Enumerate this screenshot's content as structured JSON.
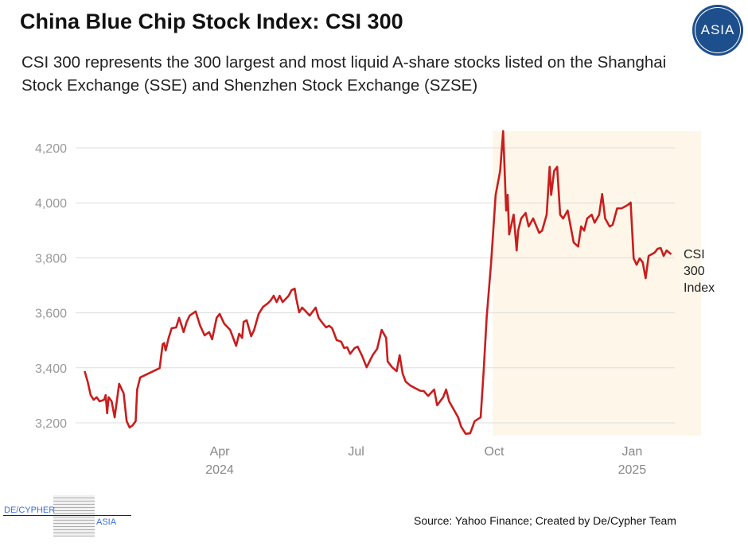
{
  "title": "China Blue Chip Stock Index: CSI 300",
  "subtitle": "CSI 300 represents the 300 largest and most liquid A-share stocks listed on the Shanghai Stock Exchange (SSE) and Shenzhen Stock Exchange (SZSE)",
  "logo_text": "ASIA",
  "source": "Source: Yahoo Finance; Created by De/Cypher Team",
  "footer_logo": {
    "left": "DE/CYPHER",
    "right": "ASIA"
  },
  "colors": {
    "line": "#c81e1e",
    "highlight": "#fdf6e9",
    "grid": "#dddddd"
  },
  "chart_data": {
    "type": "line",
    "title": "China Blue Chip Stock Index: CSI 300",
    "xlabel": "",
    "ylabel": "",
    "x_unit": "days since 2024-01-01",
    "ylim": [
      3150,
      4270
    ],
    "xlim": [
      0,
      395
    ],
    "yticks": [
      {
        "v": 3200,
        "label": "3,200"
      },
      {
        "v": 3400,
        "label": "3,400"
      },
      {
        "v": 3600,
        "label": "3,600"
      },
      {
        "v": 3800,
        "label": "3,800"
      },
      {
        "v": 4000,
        "label": "4,000"
      },
      {
        "v": 4200,
        "label": "4,200"
      }
    ],
    "xticks": [
      {
        "d": 91,
        "label": "Apr",
        "sub": "2024"
      },
      {
        "d": 182,
        "label": "Jul",
        "sub": ""
      },
      {
        "d": 274,
        "label": "Oct",
        "sub": ""
      },
      {
        "d": 366,
        "label": "Jan",
        "sub": "2025"
      }
    ],
    "highlight_range": [
      273,
      395
    ],
    "series": [
      {
        "name": "CSI 300 Index",
        "label_lines": [
          "CSI",
          "300",
          "Index"
        ],
        "points": [
          [
            1,
            3388
          ],
          [
            3,
            3350
          ],
          [
            5,
            3301
          ],
          [
            7,
            3284
          ],
          [
            9,
            3293
          ],
          [
            11,
            3278
          ],
          [
            14,
            3284
          ],
          [
            15,
            3301
          ],
          [
            16,
            3235
          ],
          [
            17,
            3293
          ],
          [
            19,
            3278
          ],
          [
            21,
            3220
          ],
          [
            24,
            3342
          ],
          [
            27,
            3307
          ],
          [
            29,
            3206
          ],
          [
            31,
            3183
          ],
          [
            33,
            3191
          ],
          [
            35,
            3206
          ],
          [
            36,
            3321
          ],
          [
            38,
            3365
          ],
          [
            51,
            3399
          ],
          [
            53,
            3486
          ],
          [
            54,
            3490
          ],
          [
            55,
            3463
          ],
          [
            57,
            3509
          ],
          [
            59,
            3544
          ],
          [
            62,
            3547
          ],
          [
            64,
            3582
          ],
          [
            67,
            3530
          ],
          [
            69,
            3567
          ],
          [
            71,
            3590
          ],
          [
            75,
            3605
          ],
          [
            78,
            3553
          ],
          [
            81,
            3518
          ],
          [
            84,
            3530
          ],
          [
            86,
            3504
          ],
          [
            89,
            3582
          ],
          [
            91,
            3596
          ],
          [
            94,
            3561
          ],
          [
            98,
            3538
          ],
          [
            102,
            3480
          ],
          [
            104,
            3524
          ],
          [
            106,
            3509
          ],
          [
            107,
            3567
          ],
          [
            109,
            3573
          ],
          [
            112,
            3515
          ],
          [
            114,
            3538
          ],
          [
            117,
            3596
          ],
          [
            120,
            3622
          ],
          [
            123,
            3634
          ],
          [
            125,
            3645
          ],
          [
            127,
            3662
          ],
          [
            129,
            3639
          ],
          [
            131,
            3662
          ],
          [
            133,
            3639
          ],
          [
            137,
            3662
          ],
          [
            139,
            3683
          ],
          [
            141,
            3688
          ],
          [
            142,
            3654
          ],
          [
            144,
            3602
          ],
          [
            146,
            3619
          ],
          [
            149,
            3602
          ],
          [
            151,
            3590
          ],
          [
            155,
            3619
          ],
          [
            157,
            3582
          ],
          [
            159,
            3567
          ],
          [
            162,
            3547
          ],
          [
            164,
            3553
          ],
          [
            166,
            3544
          ],
          [
            169,
            3501
          ],
          [
            172,
            3495
          ],
          [
            174,
            3472
          ],
          [
            176,
            3475
          ],
          [
            178,
            3451
          ],
          [
            181,
            3472
          ],
          [
            183,
            3477
          ],
          [
            186,
            3443
          ],
          [
            189,
            3402
          ],
          [
            193,
            3446
          ],
          [
            196,
            3469
          ],
          [
            199,
            3538
          ],
          [
            202,
            3509
          ],
          [
            203,
            3423
          ],
          [
            206,
            3402
          ],
          [
            209,
            3388
          ],
          [
            211,
            3446
          ],
          [
            213,
            3379
          ],
          [
            215,
            3350
          ],
          [
            218,
            3336
          ],
          [
            221,
            3327
          ],
          [
            225,
            3316
          ],
          [
            227,
            3316
          ],
          [
            230,
            3298
          ],
          [
            234,
            3321
          ],
          [
            236,
            3264
          ],
          [
            240,
            3293
          ],
          [
            242,
            3321
          ],
          [
            244,
            3278
          ],
          [
            247,
            3249
          ],
          [
            250,
            3220
          ],
          [
            252,
            3186
          ],
          [
            255,
            3160
          ],
          [
            258,
            3162
          ],
          [
            261,
            3206
          ],
          [
            265,
            3220
          ],
          [
            267,
            3388
          ],
          [
            269,
            3582
          ],
          [
            272,
            3784
          ],
          [
            275,
            4029
          ],
          [
            278,
            4116
          ],
          [
            280,
            4261
          ],
          [
            282,
            3972
          ],
          [
            283,
            4029
          ],
          [
            284,
            3885
          ],
          [
            287,
            3957
          ],
          [
            289,
            3827
          ],
          [
            290,
            3899
          ],
          [
            292,
            3943
          ],
          [
            295,
            3963
          ],
          [
            297,
            3914
          ],
          [
            300,
            3943
          ],
          [
            304,
            3891
          ],
          [
            306,
            3899
          ],
          [
            309,
            3957
          ],
          [
            311,
            4131
          ],
          [
            312,
            4029
          ],
          [
            314,
            4116
          ],
          [
            316,
            4131
          ],
          [
            318,
            3957
          ],
          [
            320,
            3943
          ],
          [
            323,
            3972
          ],
          [
            327,
            3856
          ],
          [
            330,
            3841
          ],
          [
            332,
            3914
          ],
          [
            334,
            3899
          ],
          [
            336,
            3943
          ],
          [
            339,
            3957
          ],
          [
            341,
            3928
          ],
          [
            344,
            3957
          ],
          [
            346,
            4032
          ],
          [
            348,
            3943
          ],
          [
            351,
            3914
          ],
          [
            353,
            3920
          ],
          [
            356,
            3980
          ],
          [
            359,
            3980
          ],
          [
            363,
            3992
          ],
          [
            365,
            4001
          ],
          [
            367,
            3798
          ],
          [
            369,
            3775
          ],
          [
            371,
            3798
          ],
          [
            373,
            3784
          ],
          [
            375,
            3726
          ],
          [
            377,
            3807
          ],
          [
            381,
            3819
          ],
          [
            383,
            3833
          ],
          [
            385,
            3836
          ],
          [
            387,
            3807
          ],
          [
            389,
            3827
          ],
          [
            392,
            3813
          ]
        ]
      }
    ]
  }
}
